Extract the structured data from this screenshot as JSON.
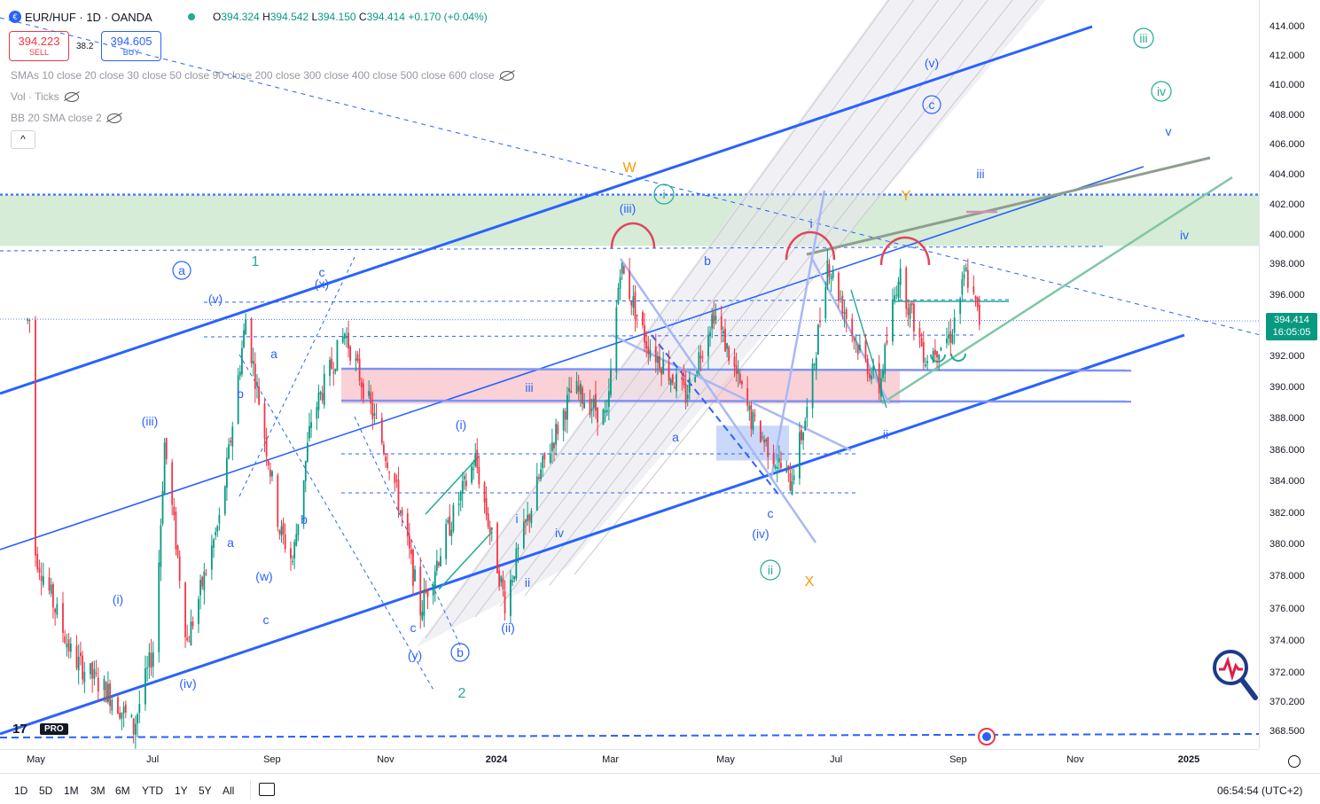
{
  "header": {
    "symbol": "EUR/HUF · 1D · OANDA",
    "ohlc": [
      {
        "label": "O",
        "value": "394.324"
      },
      {
        "label": "H",
        "value": "394.542"
      },
      {
        "label": "L",
        "value": "394.150"
      },
      {
        "label": "C",
        "value": "394.414"
      },
      {
        "label": "",
        "value": "+0.170 (+0.04%)"
      }
    ]
  },
  "trade": {
    "sell_price": "394.223",
    "sell_label": "SELL",
    "spread": "38.2",
    "buy_price": "394.605",
    "buy_label": "BUY"
  },
  "indicators": {
    "sma": "SMAs 10 close 20 close 30 close 50 close 90 close 200 close 300 close 400 close 500 close 600 close",
    "vol": "Vol · Ticks",
    "bb": "BB 20 SMA close 2",
    "collapse": "^"
  },
  "last_price": {
    "price": "394.414",
    "countdown": "16:05:05"
  },
  "colors": {
    "up": "#089981",
    "down": "#f23645",
    "channel": "#2962ff",
    "wave_blue": "#2962ff",
    "wave_green": "#22ab94",
    "wave_orange": "#ff9800",
    "supply_zone": "#f7c6cc",
    "resist_zone": "#cfe9d0"
  },
  "chart_data": {
    "type": "candlestick",
    "symbol": "EUR/HUF",
    "interval": "1D",
    "yticks": [
      "414.000",
      "412.000",
      "410.000",
      "408.000",
      "406.000",
      "404.000",
      "402.000",
      "400.000",
      "398.000",
      "396.000",
      "394.000",
      "392.000",
      "390.000",
      "388.000",
      "386.000",
      "384.000",
      "382.000",
      "380.000",
      "378.000",
      "376.000",
      "374.000",
      "372.000",
      "370.200",
      "368.500"
    ],
    "xticks": [
      {
        "label": "May",
        "bold": false
      },
      {
        "label": "Jul",
        "bold": false
      },
      {
        "label": "Sep",
        "bold": false
      },
      {
        "label": "Nov",
        "bold": false
      },
      {
        "label": "2024",
        "bold": true
      },
      {
        "label": "Mar",
        "bold": false
      },
      {
        "label": "May",
        "bold": false
      },
      {
        "label": "Jul",
        "bold": false
      },
      {
        "label": "Sep",
        "bold": false
      },
      {
        "label": "Nov",
        "bold": false
      },
      {
        "label": "2025",
        "bold": true
      }
    ],
    "ylim": [
      367.5,
      415.5
    ],
    "price_path": [
      [
        "2023-05-01",
        379.5
      ],
      [
        "2023-05-20",
        373.0
      ],
      [
        "2023-06-10",
        370.5
      ],
      [
        "2023-06-20",
        368.7
      ],
      [
        "2023-07-01",
        374.0
      ],
      [
        "2023-07-06",
        386.5
      ],
      [
        "2023-07-18",
        374.0
      ],
      [
        "2023-08-05",
        382.0
      ],
      [
        "2023-08-18",
        394.5
      ],
      [
        "2023-09-05",
        381.0
      ],
      [
        "2023-09-12",
        379.0
      ],
      [
        "2023-09-22",
        388.0
      ],
      [
        "2023-10-10",
        393.6
      ],
      [
        "2023-11-05",
        384.5
      ],
      [
        "2023-11-20",
        376.0
      ],
      [
        "2023-12-05",
        381.0
      ],
      [
        "2023-12-20",
        385.5
      ],
      [
        "2024-01-05",
        376.5
      ],
      [
        "2024-01-25",
        385.0
      ],
      [
        "2024-02-10",
        390.0
      ],
      [
        "2024-02-28",
        388.0
      ],
      [
        "2024-03-06",
        398.0
      ],
      [
        "2024-03-20",
        393.0
      ],
      [
        "2024-04-10",
        389.5
      ],
      [
        "2024-04-25",
        395.0
      ],
      [
        "2024-05-15",
        388.0
      ],
      [
        "2024-06-05",
        384.0
      ],
      [
        "2024-06-15",
        389.0
      ],
      [
        "2024-06-25",
        398.3
      ],
      [
        "2024-07-10",
        393.0
      ],
      [
        "2024-07-22",
        390.0
      ],
      [
        "2024-08-01",
        397.5
      ],
      [
        "2024-08-15",
        392.0
      ],
      [
        "2024-08-28",
        393.5
      ],
      [
        "2024-09-05",
        397.5
      ],
      [
        "2024-09-12",
        394.4
      ]
    ],
    "wave_labels": {
      "blue": [
        "(v)",
        "(x)",
        "c",
        "a",
        "b",
        "(iii)",
        "(i)",
        "(iv)",
        "(w)",
        "c",
        "a",
        "b",
        "(i)",
        "iii",
        "(y)",
        "c",
        "(ii)",
        "ii",
        "i",
        "iv",
        "(iii)",
        "b",
        "a",
        "c",
        "(iv)",
        "i",
        "ii",
        "(v)",
        "iii",
        "iv",
        "v"
      ],
      "blue_circled": [
        "a",
        "b",
        "c"
      ],
      "green": [
        "1",
        "2"
      ],
      "green_circled": [
        "i",
        "ii",
        "iii",
        "iv"
      ],
      "orange": [
        "W",
        "X",
        "Y"
      ]
    }
  },
  "xaxis_extra": {
    "settings": "axis-settings"
  },
  "bottom": {
    "ranges": [
      "1D",
      "5D",
      "1M",
      "3M",
      "6M",
      "YTD",
      "1Y",
      "5Y",
      "All"
    ],
    "clock": "06:54:54 (UTC+2)"
  },
  "brand": {
    "logo": "17",
    "pro": "PRO"
  }
}
